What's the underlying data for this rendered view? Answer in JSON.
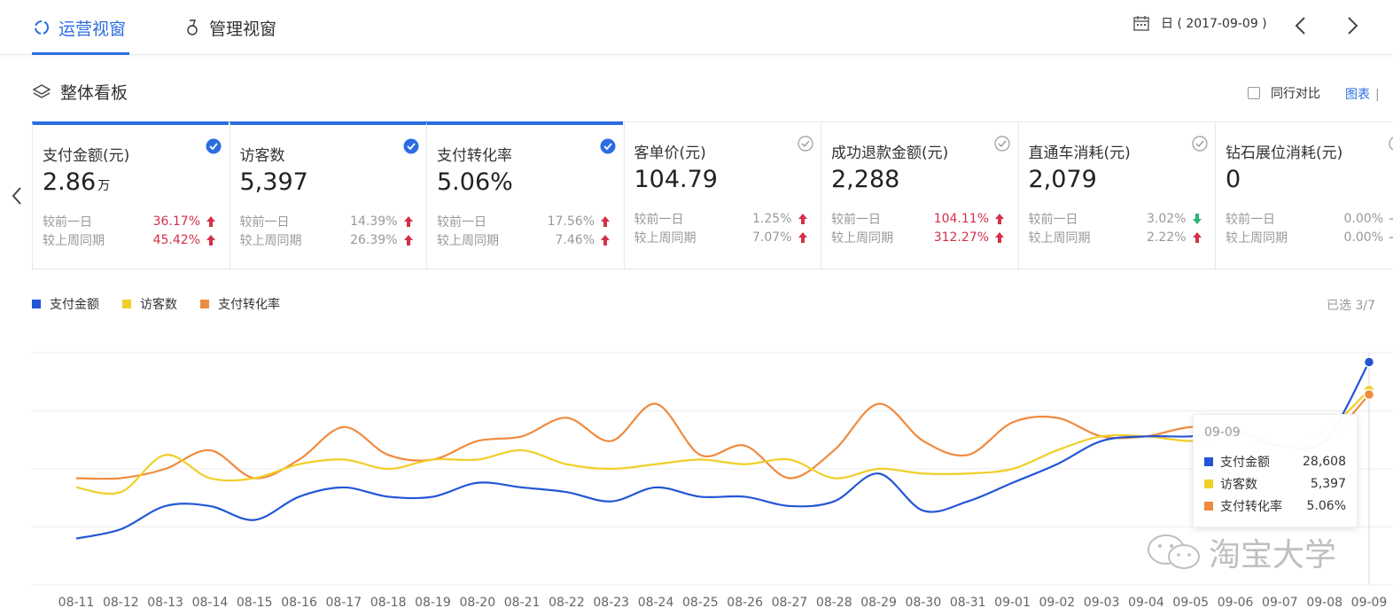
{
  "topnav": {
    "tabs": [
      {
        "label": "运营视窗",
        "active": true
      },
      {
        "label": "管理视窗",
        "active": false
      }
    ],
    "date_label": "日 ( 2017-09-09 )"
  },
  "section": {
    "title": "整体看板",
    "peer_compare_label": "同行对比",
    "chart_link_label": "图表",
    "chart_link_sep": "|"
  },
  "cards": [
    {
      "name": "支付金额(元)",
      "value": "2.86",
      "unit": "万",
      "selected": true,
      "cmp1_label": "较前一日",
      "cmp1_value": "36.17%",
      "cmp1_dir": "up",
      "cmp1_hot": true,
      "cmp2_label": "较上周同期",
      "cmp2_value": "45.42%",
      "cmp2_dir": "up",
      "cmp2_hot": true
    },
    {
      "name": "访客数",
      "value": "5,397",
      "unit": "",
      "selected": true,
      "cmp1_label": "较前一日",
      "cmp1_value": "14.39%",
      "cmp1_dir": "up",
      "cmp1_hot": false,
      "cmp2_label": "较上周同期",
      "cmp2_value": "26.39%",
      "cmp2_dir": "up",
      "cmp2_hot": false
    },
    {
      "name": "支付转化率",
      "value": "5.06%",
      "unit": "",
      "selected": true,
      "cmp1_label": "较前一日",
      "cmp1_value": "17.56%",
      "cmp1_dir": "up",
      "cmp1_hot": false,
      "cmp2_label": "较上周同期",
      "cmp2_value": "7.46%",
      "cmp2_dir": "up",
      "cmp2_hot": false
    },
    {
      "name": "客单价(元)",
      "value": "104.79",
      "unit": "",
      "selected": false,
      "cmp1_label": "较前一日",
      "cmp1_value": "1.25%",
      "cmp1_dir": "up",
      "cmp1_hot": false,
      "cmp2_label": "较上周同期",
      "cmp2_value": "7.07%",
      "cmp2_dir": "up",
      "cmp2_hot": false
    },
    {
      "name": "成功退款金额(元)",
      "value": "2,288",
      "unit": "",
      "selected": false,
      "cmp1_label": "较前一日",
      "cmp1_value": "104.11%",
      "cmp1_dir": "up",
      "cmp1_hot": true,
      "cmp2_label": "较上周同期",
      "cmp2_value": "312.27%",
      "cmp2_dir": "up",
      "cmp2_hot": true
    },
    {
      "name": "直通车消耗(元)",
      "value": "2,079",
      "unit": "",
      "selected": false,
      "cmp1_label": "较前一日",
      "cmp1_value": "3.02%",
      "cmp1_dir": "down",
      "cmp1_hot": false,
      "cmp2_label": "较上周同期",
      "cmp2_value": "2.22%",
      "cmp2_dir": "up",
      "cmp2_hot": false
    },
    {
      "name": "钻石展位消耗(元)",
      "value": "0",
      "unit": "",
      "selected": false,
      "cmp1_label": "较前一日",
      "cmp1_value": "0.00%",
      "cmp1_dir": "flat",
      "cmp1_hot": false,
      "cmp2_label": "较上周同期",
      "cmp2_value": "0.00%",
      "cmp2_dir": "flat",
      "cmp2_hot": false
    }
  ],
  "legend": {
    "selected_count": "已选 3/7"
  },
  "tooltip": {
    "date": "09-09",
    "rows": [
      {
        "label": "支付金额",
        "value": "28,608"
      },
      {
        "label": "访客数",
        "value": "5,397"
      },
      {
        "label": "支付转化率",
        "value": "5.06%"
      }
    ]
  },
  "watermark": {
    "text": "淘宝大学"
  },
  "colors": {
    "accent": "#2b6de0",
    "hot": "#d4304a",
    "up_arrow": "#d4304a",
    "down_arrow": "#2bb673",
    "series_pay": "#2256d6",
    "series_visitors": "#f0cf2a",
    "series_conv": "#f08a3e"
  },
  "chart_data": {
    "type": "line",
    "x": [
      "08-11",
      "08-12",
      "08-13",
      "08-14",
      "08-15",
      "08-16",
      "08-17",
      "08-18",
      "08-19",
      "08-20",
      "08-21",
      "08-22",
      "08-23",
      "08-24",
      "08-25",
      "08-26",
      "08-27",
      "08-28",
      "08-29",
      "08-30",
      "08-31",
      "09-01",
      "09-02",
      "09-03",
      "09-04",
      "09-05",
      "09-06",
      "09-07",
      "09-08",
      "09-09"
    ],
    "grid": true,
    "legend_position": "top-left",
    "series": [
      {
        "name": "支付金额",
        "color": "#2256d6",
        "values": [
          10,
          12,
          17,
          17,
          14,
          19,
          21,
          19,
          19,
          22,
          21,
          20,
          18,
          21,
          19,
          19,
          17,
          18,
          24,
          16,
          18,
          22,
          26,
          31,
          32,
          32,
          33,
          30,
          31,
          48
        ]
      },
      {
        "name": "访客数",
        "color": "#f0cf2a",
        "values": [
          21,
          20,
          28,
          23,
          23,
          26,
          27,
          25,
          27,
          27,
          29,
          26,
          25,
          26,
          27,
          26,
          27,
          23,
          25,
          24,
          24,
          25,
          29,
          32,
          32,
          31,
          32,
          30,
          33,
          42
        ]
      },
      {
        "name": "支付转化率",
        "color": "#f08a3e",
        "values": [
          23,
          23,
          25,
          29,
          23,
          27,
          34,
          28,
          27,
          31,
          32,
          36,
          31,
          39,
          28,
          30,
          23,
          29,
          39,
          31,
          28,
          35,
          36,
          32,
          32,
          34,
          33,
          30,
          31,
          41
        ]
      }
    ]
  }
}
